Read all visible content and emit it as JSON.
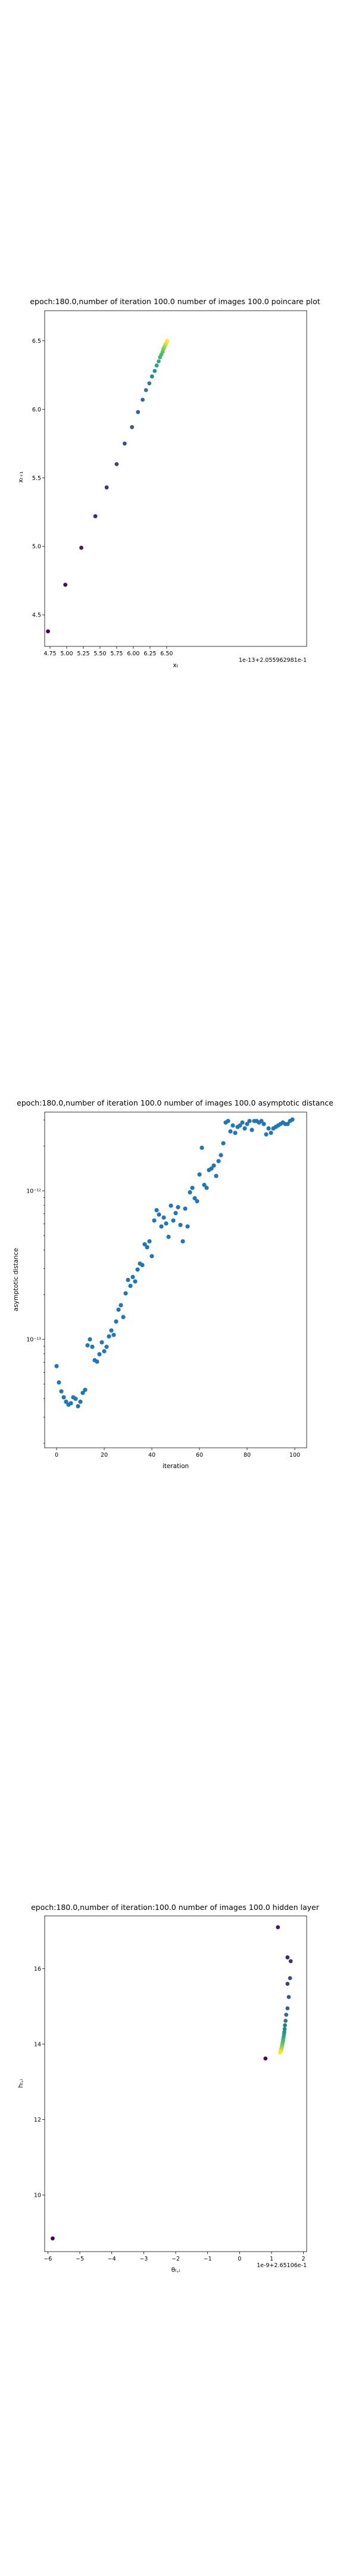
{
  "chart_data": [
    {
      "type": "scatter",
      "title": "epoch:180.0,number of iteration 100.0 number of images 100.0 poincare plot",
      "overlap_text": "",
      "xlabel": "xₜ",
      "ylabel": "xₜ₊₁",
      "x_offset_label": "1e-13+2.055962981e-1",
      "xlim": [
        4.67,
        8.6
      ],
      "ylim": [
        4.27,
        6.72
      ],
      "x_ticks": [
        4.75,
        5.0,
        5.25,
        5.5,
        5.75,
        6.0,
        6.25,
        6.5
      ],
      "x_tick_labels": [
        "4.75",
        "5.00",
        "5.25",
        "5.50",
        "5.75",
        "6.00",
        "6.25",
        "6.50"
      ],
      "y_ticks": [
        4.5,
        5.0,
        5.5,
        6.0,
        6.5
      ],
      "y_tick_labels": [
        "4.5",
        "5.0",
        "5.5",
        "6.0",
        "6.5"
      ],
      "colormap": "viridis",
      "x": [
        4.72,
        4.98,
        5.22,
        5.43,
        5.6,
        5.75,
        5.87,
        5.98,
        6.07,
        6.14,
        6.19,
        6.24,
        6.28,
        6.32,
        6.35,
        6.38,
        6.4,
        6.42,
        6.44,
        6.45,
        6.46,
        6.47,
        6.48,
        6.49,
        6.5,
        6.51
      ],
      "y": [
        4.38,
        4.72,
        4.99,
        5.22,
        5.43,
        5.6,
        5.75,
        5.87,
        5.98,
        6.07,
        6.14,
        6.19,
        6.24,
        6.28,
        6.32,
        6.35,
        6.38,
        6.4,
        6.42,
        6.44,
        6.45,
        6.46,
        6.47,
        6.48,
        6.49,
        6.5
      ]
    },
    {
      "type": "scatter",
      "title": "epoch:180.0,number of iteration 100.0  number of images 100.0 asymptotic distance",
      "xlabel": "iteration",
      "ylabel": "asymptotic distance",
      "xlim": [
        -5,
        105
      ],
      "ylim_log10": [
        -13.73,
        -11.47
      ],
      "yscale": "log",
      "x_ticks": [
        0,
        20,
        40,
        60,
        80,
        100
      ],
      "x_tick_labels": [
        "0",
        "20",
        "40",
        "60",
        "80",
        "100"
      ],
      "y_ticks_log10": [
        -13,
        -12
      ],
      "y_tick_labels": [
        "10⁻¹³",
        "10⁻¹²"
      ],
      "color": "#1f77b4",
      "x": [
        0,
        1,
        2,
        3,
        4,
        5,
        6,
        7,
        8,
        9,
        10,
        11,
        12,
        13,
        14,
        15,
        16,
        17,
        18,
        19,
        20,
        21,
        22,
        23,
        24,
        25,
        26,
        27,
        28,
        29,
        30,
        31,
        32,
        33,
        34,
        35,
        36,
        37,
        38,
        39,
        40,
        41,
        42,
        43,
        44,
        45,
        46,
        47,
        48,
        49,
        50,
        51,
        52,
        53,
        54,
        55,
        56,
        57,
        58,
        59,
        60,
        61,
        62,
        63,
        64,
        65,
        66,
        67,
        68,
        69,
        70,
        71,
        72,
        73,
        74,
        75,
        76,
        77,
        78,
        79,
        80,
        81,
        82,
        83,
        84,
        85,
        86,
        87,
        88,
        89,
        90,
        91,
        92,
        93,
        94,
        95,
        96,
        97,
        98,
        99
      ],
      "y_log10": [
        -13.18,
        -13.29,
        -13.35,
        -13.39,
        -13.42,
        -13.44,
        -13.43,
        -13.39,
        -13.4,
        -13.45,
        -13.42,
        -13.36,
        -13.34,
        -13.04,
        -13.0,
        -13.05,
        -13.14,
        -13.15,
        -13.1,
        -13.02,
        -13.08,
        -13.05,
        -12.98,
        -12.94,
        -12.97,
        -12.88,
        -12.8,
        -12.77,
        -12.85,
        -12.69,
        -12.6,
        -12.64,
        -12.58,
        -12.61,
        -12.53,
        -12.49,
        -12.5,
        -12.36,
        -12.38,
        -12.34,
        -12.44,
        -12.2,
        -12.13,
        -12.16,
        -12.24,
        -12.18,
        -12.22,
        -12.31,
        -12.1,
        -12.2,
        -12.15,
        -12.11,
        -12.23,
        -12.34,
        -12.12,
        -12.24,
        -12.01,
        -11.98,
        -12.05,
        -12.07,
        -11.89,
        -11.71,
        -11.96,
        -11.98,
        -11.86,
        -11.85,
        -11.83,
        -11.9,
        -11.8,
        -11.76,
        -11.68,
        -11.54,
        -11.53,
        -11.6,
        -11.56,
        -11.61,
        -11.57,
        -11.56,
        -11.54,
        -11.58,
        -11.55,
        -11.53,
        -11.59,
        -11.53,
        -11.53,
        -11.54,
        -11.53,
        -11.55,
        -11.62,
        -11.58,
        -11.61,
        -11.58,
        -11.57,
        -11.56,
        -11.55,
        -11.54,
        -11.55,
        -11.55,
        -11.53,
        -11.52
      ]
    },
    {
      "type": "scatter",
      "title": "epoch:180.0,number of iteration:100.0  number of images 100.0 hidden layer",
      "overlap_text": "",
      "xlabel": "θₜ,ᵢ",
      "ylabel": "hₜ,ᵢ",
      "x_offset_label": "1e-9+2.65106e-1",
      "xlim": [
        -6.1,
        2.1
      ],
      "ylim": [
        8.5,
        17.4
      ],
      "x_ticks": [
        -6,
        -5,
        -4,
        -3,
        -2,
        -1,
        0,
        1,
        2
      ],
      "x_tick_labels": [
        "−6",
        "−5",
        "−4",
        "−3",
        "−2",
        "−1",
        "0",
        "1",
        "2"
      ],
      "y_ticks": [
        10,
        12,
        14,
        16
      ],
      "y_tick_labels": [
        "10",
        "12",
        "14",
        "16"
      ],
      "colormap": "viridis",
      "x": [
        -5.85,
        0.81,
        1.2,
        1.5,
        1.6,
        1.5,
        1.58,
        1.54,
        1.5,
        1.46,
        1.44,
        1.42,
        1.41,
        1.4,
        1.39,
        1.38,
        1.37,
        1.36,
        1.35,
        1.34,
        1.33,
        1.32,
        1.31,
        1.3,
        1.29,
        1.28,
        1.27
      ],
      "y": [
        8.85,
        13.62,
        17.1,
        16.3,
        16.2,
        15.6,
        15.75,
        15.25,
        14.95,
        14.78,
        14.62,
        14.5,
        14.4,
        14.32,
        14.26,
        14.2,
        14.15,
        14.1,
        14.05,
        14.0,
        13.96,
        13.92,
        13.88,
        13.85,
        13.82,
        13.8,
        13.78
      ]
    }
  ]
}
